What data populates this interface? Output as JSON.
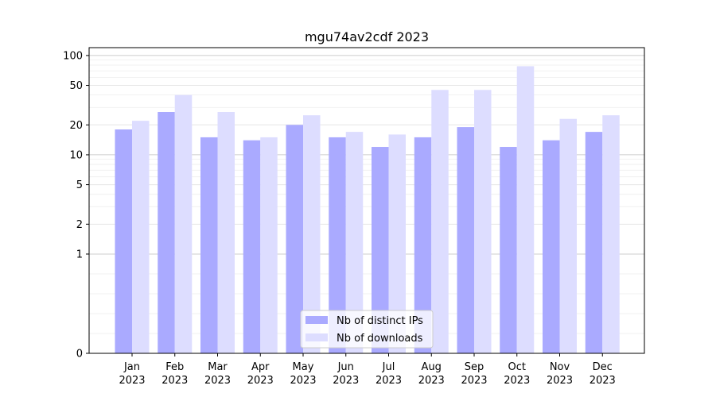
{
  "chart_data": {
    "type": "bar",
    "title": "mgu74av2cdf 2023",
    "xlabel": "",
    "ylabel": "",
    "y_scale": "symlog",
    "ylim": [
      0,
      120
    ],
    "yticks": [
      0,
      1,
      2,
      5,
      10,
      20,
      50,
      100
    ],
    "ytick_labels": [
      "0",
      "1",
      "2",
      "5",
      "10",
      "20",
      "50",
      "100"
    ],
    "grid": true,
    "legend_position": "bottom-center",
    "categories": [
      [
        "Jan",
        "2023"
      ],
      [
        "Feb",
        "2023"
      ],
      [
        "Mar",
        "2023"
      ],
      [
        "Apr",
        "2023"
      ],
      [
        "May",
        "2023"
      ],
      [
        "Jun",
        "2023"
      ],
      [
        "Jul",
        "2023"
      ],
      [
        "Aug",
        "2023"
      ],
      [
        "Sep",
        "2023"
      ],
      [
        "Oct",
        "2023"
      ],
      [
        "Nov",
        "2023"
      ],
      [
        "Dec",
        "2023"
      ]
    ],
    "series": [
      {
        "name": "Nb of distinct IPs",
        "color": "#aaaaff",
        "values": [
          18,
          27,
          15,
          14,
          20,
          15,
          12,
          15,
          19,
          12,
          14,
          17
        ]
      },
      {
        "name": "Nb of downloads",
        "color": "#ddddff",
        "values": [
          22,
          40,
          27,
          15,
          25,
          17,
          16,
          45,
          45,
          78,
          23,
          25
        ]
      }
    ]
  }
}
